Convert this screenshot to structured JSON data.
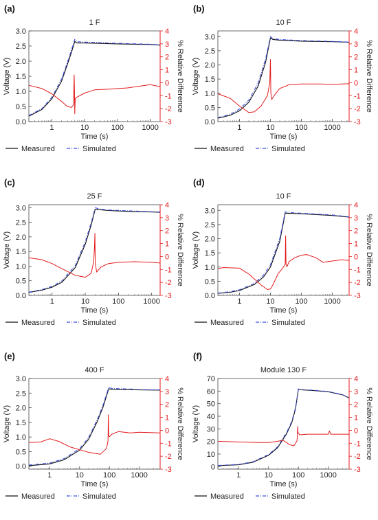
{
  "colors": {
    "measured": "#111111",
    "simulated": "#3b4fe0",
    "difference": "#e41a1c"
  },
  "chart_data": [
    {
      "type": "line",
      "panel_label": "(a)",
      "title": "1 F",
      "xlabel": "Time (s)",
      "ylabel": "Voltage (V)",
      "y2label": "% Relative Difference",
      "xscale": "log",
      "xlim": [
        0.2,
        2000
      ],
      "xticks": [
        1,
        10,
        100,
        1000
      ],
      "ylim": [
        0,
        3.0
      ],
      "yticks": [
        0,
        0.5,
        1.0,
        1.5,
        2.0,
        2.5,
        3.0
      ],
      "ytick_labels": [
        "0.0",
        "0.5",
        "1.0",
        "1.5",
        "2.0",
        "2.5",
        "3.0"
      ],
      "y2lim": [
        -3,
        4
      ],
      "y2ticks": [
        -3,
        -2,
        -1,
        0,
        1,
        2,
        3,
        4
      ],
      "legend": [
        "Measured",
        "Simulated"
      ],
      "series": [
        {
          "name": "Measured",
          "axis": "left",
          "x": [
            0.2,
            0.5,
            1,
            2,
            3,
            4,
            5,
            6,
            10,
            100,
            1000,
            2000
          ],
          "y": [
            0.18,
            0.4,
            0.75,
            1.35,
            1.9,
            2.3,
            2.65,
            2.6,
            2.6,
            2.57,
            2.55,
            2.53
          ]
        },
        {
          "name": "Simulated",
          "axis": "left",
          "x": [
            0.2,
            0.5,
            1,
            2,
            3,
            4,
            5,
            6,
            10,
            100,
            1000,
            2000
          ],
          "y": [
            0.2,
            0.43,
            0.8,
            1.42,
            1.97,
            2.38,
            2.72,
            2.64,
            2.63,
            2.59,
            2.56,
            2.54
          ]
        },
        {
          "name": "% Relative Difference",
          "axis": "right",
          "x": [
            0.2,
            0.5,
            1,
            2,
            3,
            4,
            4.6,
            4.8,
            4.9,
            5.0,
            5.1,
            5.2,
            6,
            10,
            20,
            50,
            200,
            1000,
            2000
          ],
          "y": [
            -0.2,
            -0.45,
            -0.85,
            -1.45,
            -1.85,
            -1.9,
            -1.7,
            0.6,
            -0.4,
            -2.4,
            -1.6,
            -1.2,
            -1.1,
            -0.8,
            -0.55,
            -0.5,
            -0.4,
            -0.15,
            -0.3
          ]
        }
      ]
    },
    {
      "type": "line",
      "panel_label": "(b)",
      "title": "10 F",
      "xlabel": "Time (s)",
      "ylabel": "Voltage (V)",
      "y2label": "% Relative Difference",
      "xscale": "log",
      "xlim": [
        0.2,
        3500
      ],
      "xticks": [
        1,
        10,
        100,
        1000
      ],
      "ylim": [
        0,
        3.2
      ],
      "yticks": [
        0,
        0.5,
        1.0,
        1.5,
        2.0,
        2.5,
        3.0
      ],
      "ytick_labels": [
        "0.0",
        "0.5",
        "1.0",
        "1.5",
        "2.0",
        "2.5",
        "3.0"
      ],
      "y2lim": [
        -3,
        4
      ],
      "y2ticks": [
        -3,
        -2,
        -1,
        0,
        1,
        2,
        3,
        4
      ],
      "legend": [
        "Measured",
        "Simulated"
      ],
      "series": [
        {
          "name": "Measured",
          "axis": "left",
          "x": [
            0.2,
            0.5,
            1,
            2,
            4,
            7,
            10,
            12,
            20,
            100,
            1000,
            3500
          ],
          "y": [
            0.12,
            0.22,
            0.38,
            0.68,
            1.25,
            2.1,
            2.95,
            2.9,
            2.87,
            2.84,
            2.82,
            2.8
          ]
        },
        {
          "name": "Simulated",
          "axis": "left",
          "x": [
            0.2,
            0.5,
            1,
            2,
            4,
            7,
            10,
            12,
            20,
            100,
            1000,
            3500
          ],
          "y": [
            0.14,
            0.26,
            0.44,
            0.76,
            1.36,
            2.22,
            3.0,
            2.93,
            2.9,
            2.86,
            2.83,
            2.81
          ]
        },
        {
          "name": "% Relative Difference",
          "axis": "right",
          "x": [
            0.2,
            0.5,
            1,
            2,
            3,
            5,
            8,
            9.5,
            10,
            10.3,
            11,
            14,
            20,
            40,
            100,
            400,
            1000,
            3500
          ],
          "y": [
            -0.85,
            -1.2,
            -1.8,
            -2.3,
            -2.25,
            -1.8,
            -1.0,
            0.0,
            1.8,
            -0.8,
            -1.3,
            -0.9,
            -0.45,
            -0.15,
            -0.1,
            -0.1,
            -0.12,
            -0.08
          ]
        }
      ]
    },
    {
      "type": "line",
      "panel_label": "(c)",
      "title": "25 F",
      "xlabel": "Time (s)",
      "ylabel": "Voltage (V)",
      "y2label": "% Relative Difference",
      "xscale": "log",
      "xlim": [
        0.2,
        1800
      ],
      "xticks": [
        1,
        10,
        100,
        1000
      ],
      "ylim": [
        0,
        3.1
      ],
      "yticks": [
        0,
        0.5,
        1.0,
        1.5,
        2.0,
        2.5,
        3.0
      ],
      "ytick_labels": [
        "0.0",
        "0.5",
        "1.0",
        "1.5",
        "2.0",
        "2.5",
        "3.0"
      ],
      "y2lim": [
        -3,
        4
      ],
      "y2ticks": [
        -3,
        -2,
        -1,
        0,
        1,
        2,
        3,
        4
      ],
      "legend": [
        "Measured",
        "Simulated"
      ],
      "series": [
        {
          "name": "Measured",
          "axis": "left",
          "x": [
            0.2,
            0.5,
            1,
            2,
            5,
            10,
            15,
            20,
            25,
            50,
            200,
            1000,
            1800
          ],
          "y": [
            0.1,
            0.18,
            0.28,
            0.45,
            0.95,
            1.75,
            2.4,
            2.95,
            2.93,
            2.9,
            2.87,
            2.85,
            2.84
          ]
        },
        {
          "name": "Simulated",
          "axis": "left",
          "x": [
            0.2,
            0.5,
            1,
            2,
            5,
            10,
            15,
            20,
            25,
            50,
            200,
            1000,
            1800
          ],
          "y": [
            0.11,
            0.2,
            0.31,
            0.5,
            1.02,
            1.84,
            2.48,
            3.0,
            2.96,
            2.92,
            2.89,
            2.86,
            2.85
          ]
        },
        {
          "name": "% Relative Difference",
          "axis": "right",
          "x": [
            0.2,
            0.5,
            1,
            2,
            5,
            10,
            15,
            18,
            19,
            19.5,
            20,
            22,
            30,
            50,
            100,
            300,
            1000,
            1800
          ],
          "y": [
            -0.1,
            -0.25,
            -0.55,
            -0.95,
            -1.45,
            -1.6,
            -1.3,
            -0.4,
            0.8,
            1.8,
            -0.5,
            -1.2,
            -0.8,
            -0.55,
            -0.45,
            -0.4,
            -0.45,
            -0.5
          ]
        }
      ]
    },
    {
      "type": "line",
      "panel_label": "(d)",
      "title": "10 F",
      "xlabel": "Time (s)",
      "ylabel": "Voltage (V)",
      "y2label": "% Relative Difference",
      "xscale": "log",
      "xlim": [
        0.2,
        3500
      ],
      "xticks": [
        1,
        10,
        100,
        1000
      ],
      "ylim": [
        0,
        3.2
      ],
      "yticks": [
        0,
        0.5,
        1.0,
        1.5,
        2.0,
        2.5,
        3.0
      ],
      "ytick_labels": [
        "0.0",
        "0.5",
        "1.0",
        "1.5",
        "2.0",
        "2.5",
        "3.0"
      ],
      "y2lim": [
        -3,
        4
      ],
      "y2ticks": [
        -3,
        -2,
        -1,
        0,
        1,
        2,
        3,
        4
      ],
      "legend": [
        "Measured",
        "Simulated"
      ],
      "series": [
        {
          "name": "Measured",
          "axis": "left",
          "x": [
            0.2,
            0.5,
            1,
            3,
            6,
            10,
            20,
            30,
            35,
            100,
            1000,
            3500
          ],
          "y": [
            0.07,
            0.11,
            0.17,
            0.38,
            0.65,
            1.0,
            1.9,
            2.9,
            2.9,
            2.88,
            2.82,
            2.76
          ]
        },
        {
          "name": "Simulated",
          "axis": "left",
          "x": [
            0.2,
            0.5,
            1,
            3,
            6,
            10,
            20,
            30,
            35,
            100,
            1000,
            3500
          ],
          "y": [
            0.08,
            0.13,
            0.2,
            0.42,
            0.72,
            1.08,
            2.0,
            2.95,
            2.93,
            2.9,
            2.84,
            2.77
          ]
        },
        {
          "name": "% Relative Difference",
          "axis": "right",
          "x": [
            0.2,
            0.3,
            1,
            2,
            5,
            8,
            10,
            12,
            18,
            25,
            30,
            31,
            32,
            34,
            40,
            60,
            100,
            150,
            300,
            500,
            1000,
            2000,
            3500
          ],
          "y": [
            -0.95,
            -0.85,
            -0.9,
            -1.35,
            -2.2,
            -2.55,
            -2.5,
            -2.2,
            -1.3,
            -0.9,
            -0.6,
            1.6,
            -0.6,
            -0.8,
            -0.4,
            -0.1,
            0.1,
            0.15,
            -0.1,
            -0.45,
            -0.35,
            -0.25,
            -0.3
          ]
        }
      ]
    },
    {
      "type": "line",
      "panel_label": "(e)",
      "title": "400 F",
      "xlabel": "Time (s)",
      "ylabel": "Voltage (V)",
      "y2label": "% Relative Difference",
      "xscale": "log",
      "xlim": [
        0.2,
        5000
      ],
      "xticks": [
        1,
        10,
        100,
        1000
      ],
      "ylim": [
        -0.1,
        3.0
      ],
      "yticks": [
        0,
        0.5,
        1.0,
        1.5,
        2.0,
        2.5,
        3.0
      ],
      "ytick_labels": [
        "0.0",
        "0.5",
        "1.0",
        "1.5",
        "2.0",
        "2.5",
        "3.0"
      ],
      "y2lim": [
        -3,
        4
      ],
      "y2ticks": [
        -3,
        -2,
        -1,
        0,
        1,
        2,
        3,
        4
      ],
      "legend": [
        "Measured",
        "Simulated"
      ],
      "series": [
        {
          "name": "Measured",
          "axis": "left",
          "x": [
            0.2,
            1,
            3,
            10,
            20,
            40,
            60,
            80,
            95,
            120,
            500,
            1000,
            5000
          ],
          "y": [
            0.02,
            0.08,
            0.22,
            0.55,
            0.92,
            1.55,
            2.0,
            2.4,
            2.65,
            2.63,
            2.62,
            2.61,
            2.6
          ]
        },
        {
          "name": "Simulated",
          "axis": "left",
          "x": [
            0.2,
            1,
            3,
            10,
            20,
            40,
            60,
            80,
            95,
            120,
            500,
            1000,
            5000
          ],
          "y": [
            0.04,
            0.11,
            0.26,
            0.6,
            0.98,
            1.62,
            2.07,
            2.46,
            2.7,
            2.66,
            2.64,
            2.62,
            2.61
          ]
        },
        {
          "name": "% Relative Difference",
          "axis": "right",
          "x": [
            0.2,
            0.5,
            1,
            2,
            5,
            10,
            20,
            50,
            80,
            90,
            92,
            95,
            100,
            120,
            200,
            500,
            1000,
            5000
          ],
          "y": [
            -0.95,
            -0.9,
            -0.65,
            -0.85,
            -1.3,
            -1.5,
            -1.7,
            -1.85,
            -1.4,
            -0.8,
            1.2,
            -0.4,
            -0.5,
            -0.3,
            -0.1,
            -0.2,
            -0.15,
            -0.2
          ]
        }
      ]
    },
    {
      "type": "line",
      "panel_label": "(f)",
      "title": "Module 130 F",
      "xlabel": "Time (s)",
      "ylabel": "Voltage (V)",
      "y2label": "% Relative Difference",
      "xscale": "log",
      "xlim": [
        0.2,
        5000
      ],
      "xticks": [
        1,
        10,
        100,
        1000
      ],
      "ylim": [
        -2,
        70
      ],
      "yticks": [
        0,
        10,
        20,
        30,
        40,
        50,
        60,
        70
      ],
      "ytick_labels": [
        "0",
        "10",
        "20",
        "30",
        "40",
        "50",
        "60",
        "70"
      ],
      "y2lim": [
        -3,
        4
      ],
      "y2ticks": [
        -3,
        -2,
        -1,
        0,
        1,
        2,
        3,
        4
      ],
      "legend": [
        "Measured",
        "Simulated"
      ],
      "series": [
        {
          "name": "Measured",
          "axis": "left",
          "x": [
            0.2,
            1,
            3,
            10,
            20,
            40,
            60,
            80,
            100,
            120,
            300,
            1000,
            3000,
            5000
          ],
          "y": [
            0.8,
            1.5,
            3.5,
            9.0,
            15.0,
            26.0,
            35.0,
            46.0,
            61.5,
            61.0,
            60.5,
            59.5,
            57.0,
            54.5
          ]
        },
        {
          "name": "Simulated",
          "axis": "left",
          "x": [
            0.2,
            1,
            3,
            10,
            20,
            40,
            60,
            80,
            100,
            120,
            300,
            1000,
            3000,
            5000
          ],
          "y": [
            1.0,
            1.8,
            3.9,
            9.6,
            15.8,
            27.0,
            36.0,
            47.0,
            62.0,
            61.3,
            60.7,
            59.7,
            57.2,
            54.7
          ]
        },
        {
          "name": "% Relative Difference",
          "axis": "right",
          "x": [
            0.2,
            1,
            5,
            10,
            20,
            30,
            50,
            70,
            90,
            95,
            97,
            100,
            110,
            200,
            500,
            1000,
            1100,
            1200,
            3000,
            5000
          ],
          "y": [
            -0.85,
            -0.9,
            -0.95,
            -0.95,
            -0.85,
            -0.75,
            -1.1,
            -1.2,
            -0.8,
            0.3,
            -0.2,
            -0.2,
            -0.35,
            -0.3,
            -0.3,
            -0.3,
            -0.05,
            -0.3,
            -0.3,
            -0.3
          ]
        }
      ]
    }
  ]
}
